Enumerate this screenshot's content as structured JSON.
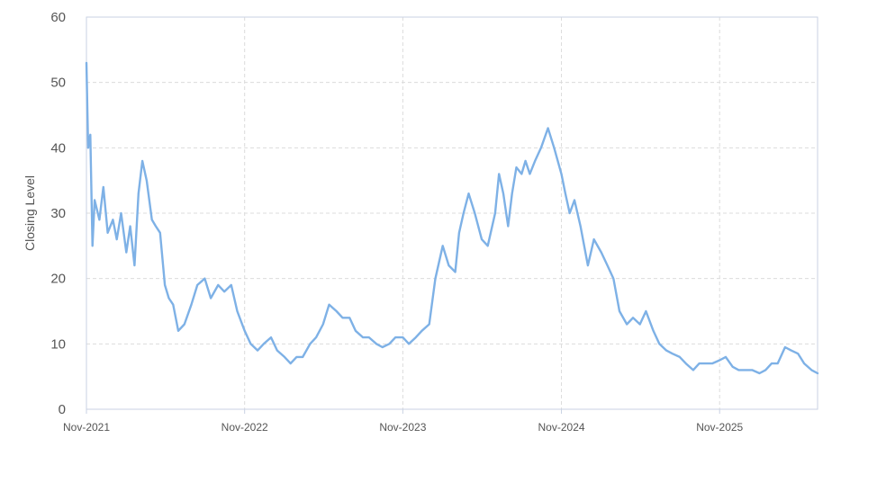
{
  "chart_data": {
    "type": "line",
    "title": "",
    "xlabel": "",
    "ylabel": "Closing Level",
    "ylim": [
      0,
      60
    ],
    "xlim": [
      "2021-11-01",
      "2026-06-15"
    ],
    "y_ticks": [
      0,
      10,
      20,
      30,
      40,
      50,
      60
    ],
    "x_ticks": [
      {
        "date": "2021-11-01",
        "label": "Nov-2021"
      },
      {
        "date": "2022-11-01",
        "label": "Nov-2022"
      },
      {
        "date": "2023-11-01",
        "label": "Nov-2023"
      },
      {
        "date": "2024-11-01",
        "label": "Nov-2024"
      },
      {
        "date": "2025-11-01",
        "label": "Nov-2025"
      }
    ],
    "grid": true,
    "legend": "none",
    "colors": {
      "line": "#7eb1e6",
      "grid": "#dcdcdc",
      "frame": "#c9d2e3"
    },
    "series": [
      {
        "x": [
          "2021-11-01",
          "2021-11-05",
          "2021-11-10",
          "2021-11-15",
          "2021-11-20",
          "2021-12-01",
          "2021-12-10",
          "2021-12-20",
          "2022-01-01",
          "2022-01-10",
          "2022-01-20",
          "2022-02-01",
          "2022-02-10",
          "2022-02-20",
          "2022-03-01",
          "2022-03-10",
          "2022-03-20",
          "2022-04-01",
          "2022-04-10",
          "2022-04-20",
          "2022-05-01",
          "2022-05-10",
          "2022-05-20",
          "2022-06-01",
          "2022-06-15",
          "2022-07-01",
          "2022-07-15",
          "2022-08-01",
          "2022-08-15",
          "2022-09-01",
          "2022-09-15",
          "2022-10-01",
          "2022-10-15",
          "2022-11-01",
          "2022-11-15",
          "2022-12-01",
          "2022-12-15",
          "2023-01-01",
          "2023-01-15",
          "2023-02-01",
          "2023-02-15",
          "2023-03-01",
          "2023-03-15",
          "2023-04-01",
          "2023-04-15",
          "2023-05-01",
          "2023-05-15",
          "2023-06-01",
          "2023-06-15",
          "2023-07-01",
          "2023-07-15",
          "2023-08-01",
          "2023-08-15",
          "2023-09-01",
          "2023-09-15",
          "2023-10-01",
          "2023-10-15",
          "2023-11-01",
          "2023-11-15",
          "2023-12-01",
          "2023-12-15",
          "2024-01-01",
          "2024-01-15",
          "2024-02-01",
          "2024-02-15",
          "2024-03-01",
          "2024-03-10",
          "2024-03-20",
          "2024-04-01",
          "2024-04-15",
          "2024-05-01",
          "2024-05-15",
          "2024-06-01",
          "2024-06-10",
          "2024-06-20",
          "2024-07-01",
          "2024-07-10",
          "2024-07-20",
          "2024-08-01",
          "2024-08-10",
          "2024-08-20",
          "2024-09-01",
          "2024-09-15",
          "2024-10-01",
          "2024-10-15",
          "2024-11-01",
          "2024-11-10",
          "2024-11-20",
          "2024-12-01",
          "2024-12-15",
          "2025-01-01",
          "2025-01-15",
          "2025-02-01",
          "2025-02-15",
          "2025-03-01",
          "2025-03-15",
          "2025-04-01",
          "2025-04-15",
          "2025-05-01",
          "2025-05-15",
          "2025-06-01",
          "2025-06-15",
          "2025-07-01",
          "2025-07-15",
          "2025-08-01",
          "2025-08-15",
          "2025-09-01",
          "2025-09-15",
          "2025-10-01",
          "2025-10-15",
          "2025-11-01",
          "2025-11-15",
          "2025-12-01",
          "2025-12-15",
          "2026-01-01",
          "2026-01-15",
          "2026-02-01",
          "2026-02-15",
          "2026-03-01",
          "2026-03-15",
          "2026-04-01",
          "2026-04-15",
          "2026-05-01",
          "2026-05-15",
          "2026-06-01",
          "2026-06-15"
        ],
        "y": [
          53,
          40,
          42,
          25,
          32,
          29,
          34,
          27,
          29,
          26,
          30,
          24,
          28,
          22,
          33,
          38,
          35,
          29,
          28,
          27,
          19,
          17,
          16,
          12,
          13,
          16,
          19,
          20,
          17,
          19,
          18,
          19,
          15,
          12,
          10,
          9,
          10,
          11,
          9,
          8,
          7,
          8,
          8,
          10,
          11,
          13,
          16,
          15,
          14,
          14,
          12,
          11,
          11,
          10,
          9.5,
          10,
          11,
          11,
          10,
          11,
          12,
          13,
          20,
          25,
          22,
          21,
          27,
          30,
          33,
          30,
          26,
          25,
          30,
          36,
          33,
          28,
          33,
          37,
          36,
          38,
          36,
          38,
          40,
          43,
          40,
          36,
          33,
          30,
          32,
          28,
          22,
          26,
          24,
          22,
          20,
          15,
          13,
          14,
          13,
          15,
          12,
          10,
          9,
          8.5,
          8,
          7,
          6,
          7,
          7,
          7,
          7.5,
          8,
          6.5,
          6,
          6,
          6,
          5.5,
          6,
          7,
          7,
          9.5,
          9,
          8.5,
          7,
          6,
          5.5
        ]
      }
    ]
  }
}
